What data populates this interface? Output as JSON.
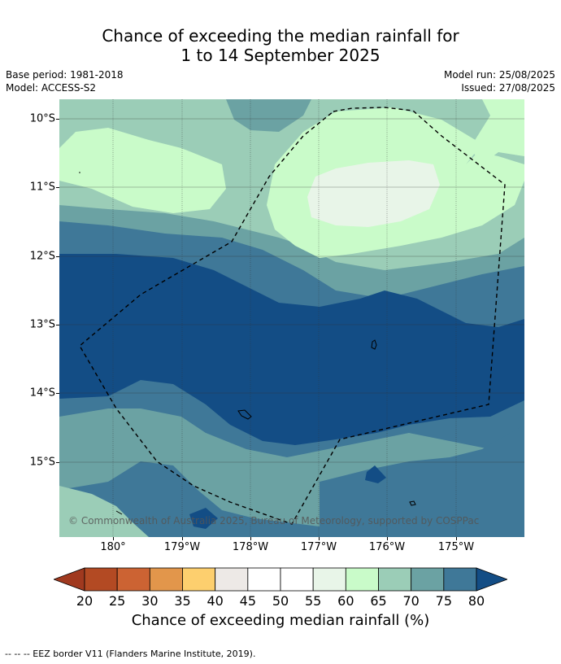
{
  "title": {
    "line1": "Chance of exceeding the median rainfall for",
    "line2": "1 to 14 September 2025"
  },
  "meta": {
    "base_period": "Base period: 1981-2018",
    "model": "Model: ACCESS-S2",
    "model_run": "Model run: 25/08/2025",
    "issued": "Issued: 27/08/2025"
  },
  "map": {
    "lat_labels": [
      "10°S",
      "11°S",
      "12°S",
      "13°S",
      "14°S",
      "15°S"
    ],
    "lon_labels": [
      "180°",
      "179°W",
      "178°W",
      "177°W",
      "176°W",
      "175°W"
    ],
    "copyright": "© Commonwealth of Australia 2025, Bureau of Meteorology, supported by COSPPac",
    "boundary_style": "dashed",
    "gridlines": true
  },
  "colorbar": {
    "title": "Chance of exceeding median rainfall (%)",
    "tick_labels": [
      "20",
      "25",
      "30",
      "35",
      "40",
      "45",
      "50",
      "55",
      "60",
      "65",
      "70",
      "75",
      "80"
    ],
    "colors": [
      "#a0391f",
      "#b34a23",
      "#cc6333",
      "#e2964b",
      "#fdcf6e",
      "#ede9e6",
      "#ffffff",
      "#ffffff",
      "#e8f5e8",
      "#c9fbc9",
      "#9bcdb7",
      "#6ba2a3",
      "#3f7898",
      "#134d85"
    ],
    "extend": "both"
  },
  "footnote": "--  --  -- EEZ border V11 (Flanders Marine Institute, 2019)."
}
